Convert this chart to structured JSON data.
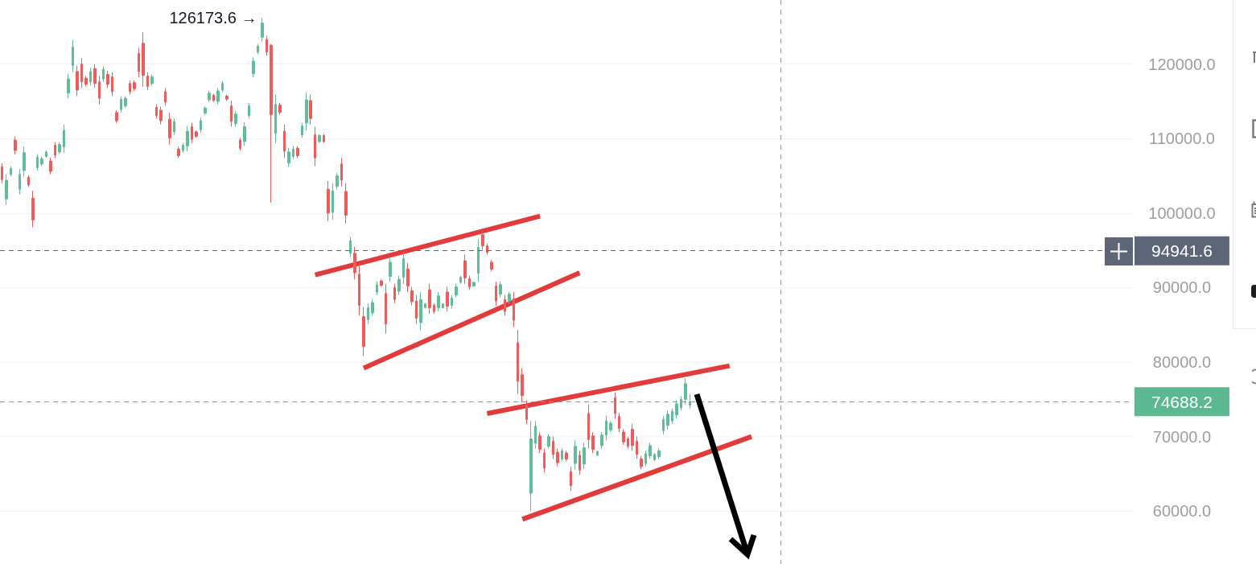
{
  "chart_data": {
    "type": "candlestick",
    "categories": [
      null,
      null,
      null,
      null,
      null,
      null,
      null,
      null,
      null,
      null,
      null,
      null,
      null,
      null,
      null,
      null,
      null,
      null,
      null,
      null,
      null,
      null,
      null,
      null,
      null,
      null,
      null,
      null,
      null,
      null,
      null,
      null,
      null,
      null,
      null,
      null,
      null,
      null,
      null,
      null,
      null,
      null,
      null,
      null,
      null,
      null,
      null,
      null,
      null,
      null,
      null,
      null,
      null,
      null,
      null,
      null,
      null,
      null,
      null,
      null,
      null,
      null,
      null,
      null,
      null,
      null,
      null,
      null,
      null,
      null,
      null,
      null,
      null,
      null,
      null,
      null,
      null,
      null,
      null,
      null,
      null,
      null,
      null,
      null,
      null,
      null,
      null,
      null,
      null,
      null,
      null,
      null,
      null,
      null,
      null,
      null,
      null,
      null,
      null,
      null,
      null,
      null,
      null,
      null,
      null,
      null,
      null,
      null,
      null,
      null,
      null,
      null,
      null,
      null,
      null,
      null,
      null,
      null,
      null,
      null,
      null,
      null,
      null,
      null,
      null,
      null,
      null,
      null,
      null,
      null,
      null,
      null,
      null,
      null,
      null,
      null,
      null,
      null,
      null,
      null,
      null,
      null,
      null,
      null,
      null,
      null,
      null,
      null,
      null,
      null,
      null,
      null,
      null,
      null,
      null,
      null,
      null,
      null,
      null,
      null,
      null,
      null,
      null,
      null,
      null,
      null,
      null,
      null,
      null,
      null,
      null,
      null,
      null,
      null,
      null,
      null,
      null,
      null,
      null,
      null,
      null,
      null,
      null,
      null,
      null,
      null,
      null,
      null,
      null,
      null,
      null,
      null,
      null,
      null,
      null,
      null,
      null,
      null,
      null,
      null,
      null,
      null,
      null,
      null,
      null,
      null,
      null,
      null,
      null,
      null,
      null,
      null,
      null,
      null,
      null,
      null,
      null,
      null,
      null,
      null,
      null,
      null,
      null,
      null,
      null,
      null,
      null,
      null,
      null,
      null,
      null,
      null,
      null,
      null,
      null,
      null,
      null,
      null,
      null,
      null,
      null,
      null,
      null,
      null,
      null,
      null,
      null,
      null,
      null,
      null,
      null,
      null,
      null,
      null,
      null,
      null,
      null
    ],
    "ohlc": [
      [
        106200,
        106700,
        104000,
        104500
      ],
      [
        101900,
        105200,
        101100,
        104400
      ],
      [
        105200,
        106300,
        104900,
        106000
      ],
      [
        109800,
        110300,
        107900,
        108400
      ],
      [
        103200,
        105900,
        102500,
        105200
      ],
      [
        105700,
        108900,
        104900,
        108100
      ],
      [
        104800,
        105100,
        103500,
        103800
      ],
      [
        102000,
        103000,
        98100,
        99100
      ],
      [
        106100,
        107900,
        105700,
        107500
      ],
      [
        106600,
        107600,
        106300,
        107300
      ],
      [
        107600,
        108400,
        107400,
        108200
      ],
      [
        107000,
        107400,
        105200,
        105600
      ],
      [
        109100,
        109500,
        107400,
        107800
      ],
      [
        108200,
        109500,
        107900,
        109200
      ],
      [
        108900,
        111900,
        108100,
        111100
      ],
      [
        116100,
        118700,
        115400,
        118000
      ],
      [
        119800,
        123200,
        118900,
        122300
      ],
      [
        119000,
        119800,
        115700,
        116500
      ],
      [
        120000,
        120800,
        116800,
        117600
      ],
      [
        118100,
        118400,
        117000,
        117300
      ],
      [
        117600,
        119500,
        117100,
        119000
      ],
      [
        119400,
        120000,
        116800,
        117400
      ],
      [
        117600,
        118400,
        114600,
        115400
      ],
      [
        118000,
        119700,
        117600,
        119300
      ],
      [
        118600,
        119100,
        116800,
        117300
      ],
      [
        118300,
        118900,
        115700,
        116300
      ],
      [
        113500,
        113800,
        112100,
        112400
      ],
      [
        113900,
        115700,
        113500,
        115300
      ],
      [
        114400,
        115700,
        114100,
        115400
      ],
      [
        117400,
        117800,
        115900,
        116300
      ],
      [
        117500,
        117800,
        116400,
        116700
      ],
      [
        121400,
        122200,
        118200,
        119000
      ],
      [
        122800,
        124300,
        117000,
        118500
      ],
      [
        118400,
        118900,
        116500,
        117000
      ],
      [
        117400,
        118600,
        117100,
        118300
      ],
      [
        114200,
        114600,
        112700,
        113100
      ],
      [
        113800,
        114300,
        111900,
        112400
      ],
      [
        116300,
        116800,
        114400,
        114900
      ],
      [
        112600,
        113500,
        109200,
        110100
      ],
      [
        110900,
        112700,
        110500,
        112300
      ],
      [
        108600,
        108900,
        107400,
        107700
      ],
      [
        108400,
        109400,
        108100,
        109100
      ],
      [
        109000,
        111700,
        108300,
        111000
      ],
      [
        111600,
        112100,
        109400,
        109900
      ],
      [
        110900,
        111100,
        110100,
        110300
      ],
      [
        111200,
        112800,
        110800,
        112400
      ],
      [
        113400,
        114300,
        113200,
        114100
      ],
      [
        115200,
        116400,
        114900,
        116100
      ],
      [
        115800,
        116000,
        114900,
        115100
      ],
      [
        115000,
        116800,
        114600,
        116400
      ],
      [
        116500,
        117700,
        116200,
        117400
      ],
      [
        115700,
        115900,
        115100,
        115300
      ],
      [
        114400,
        115100,
        111600,
        112300
      ],
      [
        112000,
        113700,
        111600,
        113300
      ],
      [
        109800,
        110100,
        108400,
        108700
      ],
      [
        109600,
        112200,
        109000,
        111600
      ],
      [
        113100,
        114800,
        112700,
        114400
      ],
      [
        118700,
        120900,
        118200,
        120400
      ],
      [
        121600,
        122700,
        121300,
        122400
      ],
      [
        123600,
        126173.6,
        123000,
        125500
      ],
      [
        123300,
        123800,
        121100,
        121600
      ],
      [
        122500,
        122700,
        101400,
        113200
      ],
      [
        110700,
        115900,
        109400,
        114600
      ],
      [
        114500,
        114800,
        113200,
        113500
      ],
      [
        111000,
        111900,
        107400,
        108300
      ],
      [
        106700,
        108700,
        106200,
        108200
      ],
      [
        107600,
        109000,
        107200,
        108600
      ],
      [
        108700,
        109000,
        107400,
        107700
      ],
      [
        110500,
        112100,
        110100,
        111700
      ],
      [
        112100,
        116200,
        111100,
        115200
      ],
      [
        115100,
        115900,
        111900,
        112700
      ],
      [
        110500,
        111600,
        106300,
        107400
      ],
      [
        109600,
        110600,
        109400,
        110400
      ],
      [
        110400,
        110600,
        109400,
        109600
      ],
      [
        103200,
        104300,
        98900,
        100000
      ],
      [
        100100,
        104000,
        99100,
        103000
      ],
      [
        103600,
        105400,
        103200,
        105000
      ],
      [
        106600,
        107400,
        103600,
        104400
      ],
      [
        102900,
        104000,
        98600,
        99700
      ],
      [
        94600,
        96800,
        94100,
        96300
      ],
      [
        94600,
        95500,
        91100,
        92000
      ],
      [
        91800,
        93200,
        86200,
        87600
      ],
      [
        86100,
        87400,
        80800,
        82100
      ],
      [
        85700,
        87900,
        85100,
        87300
      ],
      [
        86600,
        88400,
        86200,
        88000
      ],
      [
        89400,
        90800,
        89000,
        90400
      ],
      [
        90900,
        91100,
        90100,
        90300
      ],
      [
        89200,
        90500,
        83800,
        85100
      ],
      [
        91500,
        94100,
        90800,
        93400
      ],
      [
        90000,
        90500,
        87900,
        88400
      ],
      [
        89500,
        91600,
        89000,
        91100
      ],
      [
        91400,
        94800,
        90500,
        93900
      ],
      [
        92500,
        93300,
        89400,
        90200
      ],
      [
        89600,
        90100,
        87600,
        88100
      ],
      [
        88200,
        89000,
        85100,
        85900
      ],
      [
        85300,
        89400,
        84300,
        88400
      ],
      [
        87300,
        87900,
        87200,
        87800
      ],
      [
        89700,
        90500,
        86500,
        87300
      ],
      [
        87600,
        87900,
        86500,
        86800
      ],
      [
        87300,
        89400,
        86800,
        88900
      ],
      [
        87300,
        87900,
        87200,
        87800
      ],
      [
        89400,
        90100,
        86800,
        87500
      ],
      [
        87600,
        89000,
        87200,
        88600
      ],
      [
        89000,
        90500,
        88700,
        90100
      ],
      [
        90700,
        91600,
        90500,
        91400
      ],
      [
        93600,
        94400,
        90500,
        91300
      ],
      [
        91200,
        91600,
        89700,
        90100
      ],
      [
        90200,
        90800,
        90100,
        90700
      ],
      [
        91900,
        96500,
        90800,
        95400
      ],
      [
        97100,
        97600,
        95100,
        95600
      ],
      [
        95600,
        95900,
        94400,
        94700
      ],
      [
        93400,
        93700,
        92200,
        92500
      ],
      [
        90200,
        90800,
        87600,
        88200
      ],
      [
        89100,
        90800,
        88700,
        90400
      ],
      [
        88400,
        89000,
        86200,
        86800
      ],
      [
        88200,
        89400,
        87900,
        89100
      ],
      [
        88500,
        89400,
        84700,
        85600
      ],
      [
        82600,
        84300,
        75700,
        77400
      ],
      [
        78300,
        79200,
        74600,
        75500
      ],
      [
        74300,
        74900,
        71700,
        72300
      ],
      [
        62400,
        72100,
        60000,
        69700
      ],
      [
        69100,
        72100,
        68400,
        71400
      ],
      [
        70100,
        70600,
        67800,
        68300
      ],
      [
        67800,
        68400,
        65200,
        65800
      ],
      [
        68700,
        70300,
        68400,
        70000
      ],
      [
        69400,
        70000,
        67000,
        67600
      ],
      [
        67900,
        68400,
        66000,
        66500
      ],
      [
        67000,
        68400,
        66700,
        68100
      ],
      [
        67800,
        68100,
        66700,
        67000
      ],
      [
        65300,
        66000,
        62700,
        63400
      ],
      [
        66400,
        69500,
        65600,
        68700
      ],
      [
        67500,
        68100,
        64900,
        65500
      ],
      [
        66300,
        69200,
        65600,
        68500
      ],
      [
        73100,
        74300,
        68400,
        69600
      ],
      [
        70100,
        70600,
        67800,
        68300
      ],
      [
        67500,
        68100,
        67400,
        68000
      ],
      [
        68800,
        70600,
        68400,
        70200
      ],
      [
        70200,
        72800,
        69500,
        72100
      ],
      [
        70900,
        72100,
        70600,
        71800
      ],
      [
        75200,
        75900,
        72400,
        73100
      ],
      [
        72700,
        73200,
        70600,
        71100
      ],
      [
        70600,
        71000,
        68900,
        69300
      ],
      [
        69700,
        70000,
        68400,
        68700
      ],
      [
        71000,
        71700,
        68100,
        68800
      ],
      [
        69400,
        70000,
        67000,
        67600
      ],
      [
        67000,
        67400,
        65600,
        66000
      ],
      [
        66400,
        68100,
        66000,
        67700
      ],
      [
        67400,
        69200,
        67000,
        68800
      ],
      [
        66900,
        67800,
        66700,
        67600
      ],
      [
        67300,
        68400,
        67000,
        68100
      ],
      [
        70800,
        72800,
        70300,
        72300
      ],
      [
        71500,
        73500,
        71000,
        73000
      ],
      [
        72100,
        73800,
        71700,
        73400
      ],
      [
        72900,
        74900,
        72400,
        74400
      ],
      [
        73900,
        75400,
        73500,
        75000
      ],
      [
        75000,
        77800,
        74300,
        77100
      ],
      [
        74200,
        75700,
        73800,
        74688.2
      ],
      null,
      null,
      null,
      null,
      null,
      null,
      null,
      null,
      null,
      null,
      null,
      null,
      null,
      null,
      null,
      null,
      null,
      null,
      null,
      null,
      null,
      null,
      null,
      null,
      null,
      null,
      null,
      null,
      null,
      null,
      null,
      null,
      null,
      null,
      null,
      null,
      null,
      null,
      null,
      null,
      null,
      null,
      null,
      null,
      null,
      null,
      null,
      null,
      null,
      null,
      null,
      null,
      null,
      null,
      null,
      null,
      null,
      null,
      null,
      null,
      null,
      null,
      null,
      null,
      null,
      null,
      null,
      null,
      null,
      null,
      null,
      null,
      null,
      null,
      null,
      null,
      null,
      null,
      null,
      null,
      null,
      null,
      null,
      null,
      null,
      null,
      null,
      null,
      null,
      null,
      null,
      null,
      null,
      null,
      null,
      null,
      null,
      null,
      null,
      null
    ],
    "colors": [
      "#ef5a5a",
      "#5fbd97",
      "#5fbd97",
      "#ef5a5a",
      "#5fbd97",
      "#5fbd97",
      "#ef5a5a",
      "#ef5a5a",
      "#5fbd97",
      "#5fbd97",
      "#5fbd97",
      "#ef5a5a",
      "#ef5a5a",
      "#5fbd97",
      "#5fbd97",
      "#5fbd97",
      "#5fbd97",
      "#ef5a5a",
      "#ef5a5a",
      "#ef5a5a",
      "#5fbd97",
      "#ef5a5a",
      "#ef5a5a",
      "#5fbd97",
      "#ef5a5a",
      "#ef5a5a",
      "#ef5a5a",
      "#5fbd97",
      "#5fbd97",
      "#ef5a5a",
      "#ef5a5a",
      "#ef5a5a",
      "#ef5a5a",
      "#ef5a5a",
      "#5fbd97",
      "#ef5a5a",
      "#ef5a5a",
      "#ef5a5a",
      "#ef5a5a",
      "#5fbd97",
      "#ef5a5a",
      "#5fbd97",
      "#5fbd97",
      "#ef5a5a",
      "#ef5a5a",
      "#5fbd97",
      "#5fbd97",
      "#5fbd97",
      "#ef5a5a",
      "#5fbd97",
      "#5fbd97",
      "#ef5a5a",
      "#ef5a5a",
      "#5fbd97",
      "#ef5a5a",
      "#5fbd97",
      "#5fbd97",
      "#5fbd97",
      "#5fbd97",
      "#5fbd97",
      "#ef5a5a",
      "#ef5a5a",
      "#5fbd97",
      "#ef5a5a",
      "#ef5a5a",
      "#5fbd97",
      "#5fbd97",
      "#ef5a5a",
      "#5fbd97",
      "#5fbd97",
      "#ef5a5a",
      "#ef5a5a",
      "#5fbd97",
      "#ef5a5a",
      "#ef5a5a",
      "#5fbd97",
      "#5fbd97",
      "#ef5a5a",
      "#ef5a5a",
      "#5fbd97",
      "#ef5a5a",
      "#ef5a5a",
      "#ef5a5a",
      "#5fbd97",
      "#5fbd97",
      "#5fbd97",
      "#ef5a5a",
      "#ef5a5a",
      "#5fbd97",
      "#ef5a5a",
      "#5fbd97",
      "#5fbd97",
      "#ef5a5a",
      "#ef5a5a",
      "#ef5a5a",
      "#5fbd97",
      "#5fbd97",
      "#ef5a5a",
      "#ef5a5a",
      "#5fbd97",
      "#5fbd97",
      "#ef5a5a",
      "#5fbd97",
      "#5fbd97",
      "#5fbd97",
      "#ef5a5a",
      "#ef5a5a",
      "#5fbd97",
      "#5fbd97",
      "#ef5a5a",
      "#ef5a5a",
      "#ef5a5a",
      "#ef5a5a",
      "#5fbd97",
      "#ef5a5a",
      "#5fbd97",
      "#ef5a5a",
      "#ef5a5a",
      "#ef5a5a",
      "#ef5a5a",
      "#5fbd97",
      "#5fbd97",
      "#ef5a5a",
      "#ef5a5a",
      "#5fbd97",
      "#ef5a5a",
      "#ef5a5a",
      "#5fbd97",
      "#ef5a5a",
      "#ef5a5a",
      "#5fbd97",
      "#ef5a5a",
      "#5fbd97",
      "#ef5a5a",
      "#ef5a5a",
      "#5fbd97",
      "#5fbd97",
      "#5fbd97",
      "#5fbd97",
      "#ef5a5a",
      "#ef5a5a",
      "#ef5a5a",
      "#ef5a5a",
      "#ef5a5a",
      "#ef5a5a",
      "#ef5a5a",
      "#5fbd97",
      "#5fbd97",
      "#5fbd97",
      "#5fbd97",
      "#5fbd97",
      "#5fbd97",
      "#5fbd97",
      "#5fbd97",
      "#5fbd97",
      "#5fbd97",
      "#5fbd97",
      null,
      null,
      null,
      null,
      null,
      null,
      null,
      null,
      null,
      null,
      null,
      null,
      null,
      null,
      null,
      null,
      null,
      null,
      null,
      null,
      null,
      null,
      null,
      null,
      null,
      null,
      null,
      null,
      null,
      null,
      null,
      null,
      null,
      null,
      null,
      null,
      null,
      null,
      null,
      null,
      null,
      null,
      null,
      null,
      null,
      null,
      null,
      null,
      null,
      null,
      null,
      null,
      null,
      null,
      null,
      null,
      null,
      null,
      null,
      null,
      null,
      null,
      null,
      null,
      null,
      null,
      null,
      null,
      null,
      null,
      null,
      null,
      null,
      null,
      null,
      null,
      null,
      null,
      null,
      null,
      null,
      null,
      null,
      null,
      null,
      null,
      null,
      null,
      null,
      null,
      null,
      null,
      null,
      null,
      null,
      null,
      null,
      null,
      null,
      null
    ],
    "series": [
      {
        "type": "line",
        "color": "#e23b3b",
        "values": [
          null,
          null,
          null,
          null,
          null,
          null,
          null,
          null,
          null,
          null,
          null,
          null,
          null,
          null,
          null,
          null,
          null,
          null,
          null,
          null,
          null,
          null,
          null,
          null,
          null,
          null,
          null,
          null,
          null,
          null,
          null,
          null,
          null,
          null,
          null,
          null,
          null,
          null,
          null,
          null,
          null,
          null,
          null,
          null,
          null,
          null,
          null,
          null,
          null,
          null,
          null,
          null,
          null,
          null,
          null,
          null,
          null,
          null,
          null,
          null,
          null,
          null,
          null,
          null,
          null,
          null,
          null,
          null,
          null,
          null,
          null,
          91700,
          null,
          null,
          null,
          null,
          null,
          null,
          null,
          null,
          null,
          null,
          null,
          null,
          null,
          null,
          null,
          null,
          null,
          null,
          null,
          null,
          null,
          null,
          null,
          null,
          null,
          null,
          null,
          null,
          null,
          null,
          null,
          null,
          null,
          null,
          null,
          null,
          null,
          null,
          null,
          null,
          null,
          null,
          null,
          null,
          null,
          null,
          null,
          null,
          null,
          null,
          99600,
          null,
          null,
          null,
          null,
          null,
          null,
          null,
          null,
          null,
          null,
          null,
          null,
          null,
          null,
          null,
          null,
          null,
          null,
          null,
          null,
          null,
          null,
          null,
          null,
          null,
          null,
          null,
          null,
          null,
          null,
          null,
          null,
          null,
          null,
          null,
          null,
          null,
          null,
          null,
          null,
          null,
          null,
          null,
          null,
          null,
          null,
          null,
          null,
          null,
          null,
          null,
          null,
          null,
          null,
          null,
          null,
          null,
          null,
          null,
          null,
          null,
          null,
          null,
          null,
          null,
          null,
          null,
          null,
          null,
          null,
          null,
          null,
          null,
          null,
          null,
          null,
          null,
          null,
          null,
          null,
          null,
          null,
          null,
          null,
          null,
          null,
          null,
          null,
          null,
          null,
          null,
          null,
          null,
          null,
          null,
          null,
          null,
          null,
          null,
          null,
          null,
          null,
          null,
          null,
          null,
          null,
          null,
          null,
          null,
          null,
          null,
          null,
          null,
          null,
          null,
          null,
          null,
          null,
          null,
          null,
          null,
          null,
          null,
          null,
          null,
          null,
          null,
          null,
          null,
          null,
          null,
          null,
          null,
          null
        ]
      },
      {
        "type": "line",
        "color": "#e23b3b",
        "values": [
          null,
          null,
          null,
          null,
          null,
          null,
          null,
          null,
          null,
          null,
          null,
          null,
          null,
          null,
          null,
          null,
          null,
          null,
          null,
          null,
          null,
          null,
          null,
          null,
          null,
          null,
          null,
          null,
          null,
          null,
          null,
          null,
          null,
          null,
          null,
          null,
          null,
          null,
          null,
          null,
          null,
          null,
          null,
          null,
          null,
          null,
          null,
          null,
          null,
          null,
          null,
          null,
          null,
          null,
          null,
          null,
          null,
          null,
          null,
          null,
          null,
          null,
          null,
          null,
          null,
          null,
          null,
          null,
          null,
          null,
          null,
          null,
          null,
          null,
          null,
          null,
          null,
          null,
          null,
          null,
          null,
          null,
          79200,
          null,
          null,
          null,
          null,
          null,
          null,
          null,
          null,
          null,
          null,
          null,
          null,
          null,
          null,
          null,
          null,
          null,
          null,
          null,
          null,
          null,
          null,
          null,
          null,
          null,
          null,
          null,
          null,
          null,
          null,
          null,
          null,
          null,
          null,
          null,
          null,
          null,
          null,
          null,
          null,
          null,
          null,
          null,
          null,
          null,
          null,
          null,
          null,
          92000,
          null,
          null,
          null,
          null,
          null,
          null,
          null,
          null,
          null,
          null,
          null,
          null,
          null,
          null,
          null,
          null,
          null,
          null,
          null,
          null,
          null,
          null,
          null,
          null,
          null,
          null,
          null,
          null,
          null,
          null,
          null,
          null,
          null,
          null,
          null,
          null,
          null,
          null,
          null,
          null,
          null,
          null,
          null,
          null,
          null,
          null,
          null,
          null,
          null,
          null,
          null,
          null,
          null,
          null,
          null,
          null,
          null,
          null,
          null,
          null,
          null,
          null,
          null,
          null,
          null,
          null,
          null,
          null,
          null,
          null,
          null,
          null,
          null,
          null,
          null,
          null,
          null,
          null,
          null,
          null,
          null,
          null,
          null,
          null,
          null,
          null,
          null,
          null,
          null,
          null,
          null,
          null,
          null,
          null,
          null,
          null,
          null,
          null,
          null,
          null,
          null,
          null,
          null,
          null,
          null,
          null,
          null,
          null,
          null,
          null,
          null,
          null,
          null,
          null,
          null,
          null,
          null,
          null,
          null,
          null,
          null,
          null,
          null,
          null,
          null
        ]
      },
      {
        "type": "line",
        "color": "#e23b3b",
        "values": [
          null,
          null,
          null,
          null,
          null,
          null,
          null,
          null,
          null,
          null,
          null,
          null,
          null,
          null,
          null,
          null,
          null,
          null,
          null,
          null,
          null,
          null,
          null,
          null,
          null,
          null,
          null,
          null,
          null,
          null,
          null,
          null,
          null,
          null,
          null,
          null,
          null,
          null,
          null,
          null,
          null,
          null,
          null,
          null,
          null,
          null,
          null,
          null,
          null,
          null,
          null,
          null,
          null,
          null,
          null,
          null,
          null,
          null,
          null,
          null,
          null,
          null,
          null,
          null,
          null,
          null,
          null,
          null,
          null,
          null,
          null,
          null,
          null,
          null,
          null,
          null,
          null,
          null,
          null,
          null,
          null,
          null,
          null,
          null,
          null,
          null,
          null,
          null,
          null,
          null,
          null,
          null,
          null,
          null,
          null,
          null,
          null,
          null,
          null,
          null,
          null,
          null,
          null,
          null,
          null,
          null,
          null,
          null,
          null,
          null,
          73100,
          null,
          null,
          null,
          null,
          null,
          null,
          null,
          null,
          null,
          null,
          null,
          null,
          null,
          null,
          null,
          null,
          null,
          null,
          null,
          null,
          null,
          null,
          null,
          null,
          null,
          null,
          null,
          null,
          null,
          null,
          null,
          null,
          null,
          null,
          null,
          null,
          null,
          null,
          null,
          null,
          null,
          null,
          null,
          null,
          null,
          null,
          null,
          null,
          null,
          null,
          null,
          null,
          null,
          null,
          79500,
          null,
          null,
          null,
          null,
          null,
          null,
          null,
          null,
          null,
          null,
          null,
          null,
          null,
          null,
          null,
          null,
          null,
          null,
          null,
          null,
          null,
          null,
          null,
          null,
          null,
          null,
          null,
          null,
          null,
          null,
          null,
          null,
          null,
          null,
          null,
          null,
          null,
          null,
          null,
          null,
          null,
          null,
          null,
          null,
          null,
          null,
          null,
          null,
          null,
          null,
          null,
          null,
          null,
          null,
          null,
          null,
          null,
          null,
          null,
          null,
          null,
          null,
          null,
          null,
          null,
          null,
          null,
          null,
          null,
          null,
          null,
          null,
          null,
          null,
          null,
          null,
          null,
          null,
          null,
          null,
          null,
          null,
          null,
          null,
          null,
          null,
          null,
          null,
          null,
          null,
          null
        ]
      },
      {
        "type": "line",
        "color": "#e23b3b",
        "values": [
          null,
          null,
          null,
          null,
          null,
          null,
          null,
          null,
          null,
          null,
          null,
          null,
          null,
          null,
          null,
          null,
          null,
          null,
          null,
          null,
          null,
          null,
          null,
          null,
          null,
          null,
          null,
          null,
          null,
          null,
          null,
          null,
          null,
          null,
          null,
          null,
          null,
          null,
          null,
          null,
          null,
          null,
          null,
          null,
          null,
          null,
          null,
          null,
          null,
          null,
          null,
          null,
          null,
          null,
          null,
          null,
          null,
          null,
          null,
          null,
          null,
          null,
          null,
          null,
          null,
          null,
          null,
          null,
          null,
          null,
          null,
          null,
          null,
          null,
          null,
          null,
          null,
          null,
          null,
          null,
          null,
          null,
          null,
          null,
          null,
          null,
          null,
          null,
          null,
          null,
          null,
          null,
          null,
          null,
          null,
          null,
          null,
          null,
          null,
          null,
          null,
          null,
          null,
          null,
          null,
          null,
          null,
          null,
          null,
          null,
          null,
          null,
          null,
          null,
          null,
          null,
          null,
          null,
          58900,
          null,
          null,
          null,
          null,
          null,
          null,
          null,
          null,
          null,
          null,
          null,
          null,
          null,
          null,
          null,
          null,
          null,
          null,
          null,
          null,
          null,
          null,
          null,
          null,
          null,
          null,
          null,
          null,
          null,
          null,
          null,
          null,
          null,
          null,
          null,
          null,
          null,
          null,
          null,
          null,
          null,
          null,
          null,
          null,
          null,
          null,
          null,
          null,
          null,
          null,
          null,
          70000,
          null,
          null,
          null,
          null,
          null,
          null,
          null,
          null,
          null,
          null,
          null,
          null,
          null,
          null,
          null,
          null,
          null,
          null,
          null,
          null,
          null,
          null,
          null,
          null,
          null,
          null,
          null,
          null,
          null,
          null,
          null,
          null,
          null,
          null,
          null,
          null,
          null,
          null,
          null,
          null,
          null,
          null,
          null,
          null,
          null,
          null,
          null,
          null,
          null,
          null,
          null,
          null,
          null,
          null,
          null,
          null,
          null,
          null,
          null,
          null,
          null,
          null,
          null,
          null,
          null,
          null,
          null,
          null,
          null,
          null,
          null,
          null,
          null,
          null,
          null,
          null,
          null,
          null,
          null,
          null,
          null,
          null,
          null,
          null,
          null,
          null
        ]
      }
    ],
    "ylim": [
      52900,
      128600
    ],
    "yticks": [
      {
        "value": 60000,
        "label": "60000.0"
      },
      {
        "value": 70000,
        "label": "70000.0"
      },
      {
        "value": 80000,
        "label": "80000.0"
      },
      {
        "value": 90000,
        "label": "90000.0"
      },
      {
        "value": 100000,
        "label": "100000.0"
      },
      {
        "value": 110000,
        "label": "110000.0"
      },
      {
        "value": 120000,
        "label": "120000.0"
      }
    ],
    "ref_lines": [
      {
        "axis": "y",
        "value": 94941.6,
        "label": "94941.6",
        "color": "#5d6679",
        "line_style": "dashed"
      },
      {
        "axis": "y",
        "value": 74688.2,
        "label": "74688.2",
        "color": "#5bb891",
        "line_style": "dashed"
      }
    ],
    "annotations": [
      "126173.6 →"
    ],
    "grid": "y",
    "tick_labels": "y"
  }
}
